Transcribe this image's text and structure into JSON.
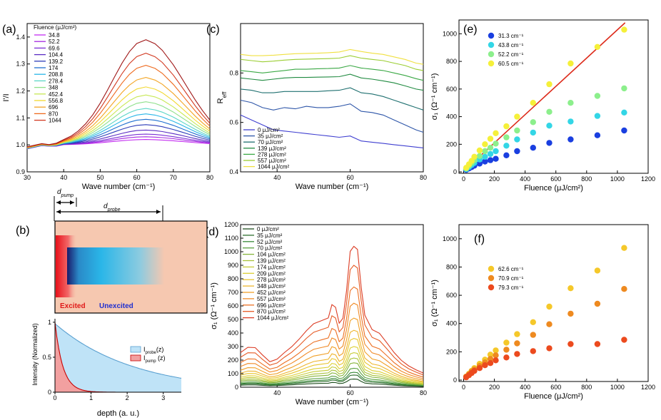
{
  "panel_labels": {
    "a": "(a)",
    "b": "(b)",
    "c": "(c)",
    "d": "(d)",
    "e": "(e)",
    "f": "(f)"
  },
  "chart_data": [
    {
      "id": "a",
      "type": "line",
      "title": "",
      "xlabel": "Wave number (cm⁻¹)",
      "ylabel": "I'/I",
      "xlim": [
        30,
        80
      ],
      "ylim": [
        0.9,
        1.45
      ],
      "xticks": [
        30,
        40,
        50,
        60,
        70,
        80
      ],
      "yticks": [
        0.9,
        1.0,
        1.1,
        1.2,
        1.3,
        1.4
      ],
      "legend_title": "Fluence (μJ/cm²)",
      "x": [
        30,
        32,
        34,
        36,
        38,
        40,
        42,
        44,
        46,
        48,
        50,
        52,
        54,
        56,
        58,
        60,
        62.5,
        65,
        67,
        70,
        72,
        74,
        76,
        78,
        80
      ],
      "series": [
        {
          "name": "34.8",
          "peak": 1.02,
          "color": "#c32cf0"
        },
        {
          "name": "52.2",
          "peak": 1.03,
          "color": "#a428e0"
        },
        {
          "name": "69.6",
          "peak": 1.04,
          "color": "#7b2fd4"
        },
        {
          "name": "104.4",
          "peak": 1.055,
          "color": "#5a2cc4"
        },
        {
          "name": "139.2",
          "peak": 1.075,
          "color": "#2c3cb8"
        },
        {
          "name": "174",
          "peak": 1.095,
          "color": "#1f6fd0"
        },
        {
          "name": "208.8",
          "peak": 1.115,
          "color": "#29b6e8"
        },
        {
          "name": "278.4",
          "peak": 1.135,
          "color": "#5bd6c6"
        },
        {
          "name": "348",
          "peak": 1.16,
          "color": "#8fe08a"
        },
        {
          "name": "452.4",
          "peak": 1.185,
          "color": "#c8e855"
        },
        {
          "name": "556.8",
          "peak": 1.215,
          "color": "#f2d830"
        },
        {
          "name": "696",
          "peak": 1.25,
          "color": "#f3a525"
        },
        {
          "name": "870",
          "peak": 1.295,
          "color": "#ee6a1e"
        },
        {
          "name": "1044",
          "peak": 1.34,
          "color": "#d23a22"
        },
        {
          "name": "",
          "peak": 1.39,
          "color": "#a01818"
        }
      ]
    },
    {
      "id": "b",
      "type": "area",
      "title": "",
      "xlabel": "depth (a. u.)",
      "ylabel": "Intensity (Normalized)",
      "xlim": [
        0,
        3.5
      ],
      "ylim": [
        0,
        1.05
      ],
      "xticks": [
        0,
        1,
        2,
        3
      ],
      "yticks": [
        0,
        0.5,
        1
      ],
      "series": [
        {
          "name": "I_probe(z)",
          "decay_length": 2.2,
          "color": "#bfe3f7"
        },
        {
          "name": "I_pump (z)",
          "decay_length": 0.22,
          "color": "#f2a0a0"
        }
      ],
      "legend": [
        "I",
        "I"
      ],
      "legend_subs": [
        "probe",
        "pump"
      ],
      "legend_tails": [
        "(z)",
        " (z)"
      ],
      "schematic": {
        "d_pump": "d",
        "d_pump_sub": "pump",
        "d_probe": "d",
        "d_probe_sub": "probe",
        "excited": "Excited",
        "unexcited": "Unexcited"
      }
    },
    {
      "id": "c",
      "type": "line",
      "title": "",
      "xlabel": "Wave number (cm⁻¹)",
      "ylabel": "R",
      "ylabel_sub": "eff",
      "xlim": [
        30,
        80
      ],
      "ylim": [
        0.4,
        1.0
      ],
      "xticks": [
        40,
        60,
        80
      ],
      "yticks": [
        0.4,
        0.6,
        0.8
      ],
      "x": [
        30,
        33,
        36,
        39,
        42,
        45,
        48,
        51,
        54,
        57,
        60,
        63,
        66,
        69,
        72,
        75,
        78,
        80
      ],
      "series": [
        {
          "name": "0 μJ/cm²",
          "color": "#3f3fd0",
          "values": [
            0.63,
            0.61,
            0.59,
            0.57,
            0.565,
            0.56,
            0.555,
            0.55,
            0.545,
            0.54,
            0.545,
            0.525,
            0.52,
            0.515,
            0.51,
            0.505,
            0.5,
            0.497
          ]
        },
        {
          "name": "35 μJ/cm²",
          "color": "#2d55a8",
          "values": [
            0.69,
            0.68,
            0.66,
            0.65,
            0.66,
            0.655,
            0.665,
            0.66,
            0.66,
            0.665,
            0.675,
            0.645,
            0.64,
            0.63,
            0.61,
            0.59,
            0.57,
            0.56
          ]
        },
        {
          "name": "70 μJ/cm²",
          "color": "#1f7070",
          "values": [
            0.735,
            0.73,
            0.72,
            0.72,
            0.725,
            0.725,
            0.725,
            0.725,
            0.728,
            0.73,
            0.74,
            0.72,
            0.715,
            0.705,
            0.69,
            0.675,
            0.66,
            0.65
          ]
        },
        {
          "name": "139 μJ/cm²",
          "color": "#208a40",
          "values": [
            0.78,
            0.775,
            0.77,
            0.775,
            0.78,
            0.782,
            0.782,
            0.783,
            0.784,
            0.785,
            0.795,
            0.78,
            0.775,
            0.768,
            0.76,
            0.748,
            0.735,
            0.73
          ]
        },
        {
          "name": "278 μJ/cm²",
          "color": "#3aa844",
          "values": [
            0.81,
            0.805,
            0.8,
            0.805,
            0.81,
            0.815,
            0.815,
            0.817,
            0.818,
            0.82,
            0.83,
            0.82,
            0.815,
            0.81,
            0.8,
            0.79,
            0.777,
            0.77
          ]
        },
        {
          "name": "557 μJ/cm²",
          "color": "#9acd32",
          "values": [
            0.855,
            0.85,
            0.845,
            0.848,
            0.852,
            0.855,
            0.856,
            0.857,
            0.858,
            0.86,
            0.87,
            0.86,
            0.855,
            0.85,
            0.84,
            0.83,
            0.815,
            0.81
          ]
        },
        {
          "name": "1044 μJ/cm²",
          "color": "#f0e040",
          "values": [
            0.875,
            0.87,
            0.87,
            0.872,
            0.875,
            0.878,
            0.879,
            0.88,
            0.882,
            0.885,
            0.895,
            0.887,
            0.88,
            0.875,
            0.865,
            0.855,
            0.84,
            0.835
          ]
        }
      ]
    },
    {
      "id": "d",
      "type": "line",
      "title": "",
      "xlabel": "Wave number (cm⁻¹)",
      "ylabel": "σ₁ (Ω⁻¹ cm⁻¹)",
      "xlim": [
        30,
        80
      ],
      "ylim": [
        0,
        1200
      ],
      "xticks": [
        40,
        60,
        80
      ],
      "yticks": [
        0,
        100,
        200,
        300,
        400,
        500,
        600,
        700,
        800,
        900,
        1000,
        1100,
        1200
      ],
      "x": [
        30,
        32,
        34,
        36,
        38,
        40,
        42,
        44,
        46,
        48,
        50,
        52,
        54,
        55,
        56,
        57,
        58,
        59,
        60,
        61,
        62,
        63,
        64,
        66,
        68,
        70,
        72,
        74,
        76,
        78,
        80
      ],
      "series": [
        {
          "name": "0 μJ/cm²",
          "color": "#1f4f1f",
          "peak": 60
        },
        {
          "name": "35 μJ/cm²",
          "color": "#2e6e2e",
          "peak": 90
        },
        {
          "name": "52 μJ/cm²",
          "color": "#3a8a3a",
          "peak": 110
        },
        {
          "name": "70 μJ/cm²",
          "color": "#5aa040",
          "peak": 140
        },
        {
          "name": "104 μJ/cm²",
          "color": "#86b43a",
          "peak": 180
        },
        {
          "name": "139 μJ/cm²",
          "color": "#a8c23a",
          "peak": 215
        },
        {
          "name": "174 μJ/cm²",
          "color": "#c6cc38",
          "peak": 255
        },
        {
          "name": "209 μJ/cm²",
          "color": "#dcd034",
          "peak": 300
        },
        {
          "name": "278 μJ/cm²",
          "color": "#e8c630",
          "peak": 360
        },
        {
          "name": "348 μJ/cm²",
          "color": "#eeb52c",
          "peak": 420
        },
        {
          "name": "452 μJ/cm²",
          "color": "#f0a028",
          "peak": 510
        },
        {
          "name": "557 μJ/cm²",
          "color": "#f08a26",
          "peak": 620
        },
        {
          "name": "696 μJ/cm²",
          "color": "#ec7024",
          "peak": 740
        },
        {
          "name": "870 μJ/cm²",
          "color": "#e65a24",
          "peak": 900
        },
        {
          "name": "1044 μJ/cm²",
          "color": "#dc3c24",
          "peak": 1040
        }
      ]
    },
    {
      "id": "e",
      "type": "scatter",
      "title": "",
      "xlabel": "Fluence (μJ/cm²)",
      "ylabel": "σ₁ (Ω⁻¹ cm⁻¹)",
      "xlim": [
        -30,
        1200
      ],
      "ylim": [
        -10,
        1100
      ],
      "xticks": [
        0,
        200,
        400,
        600,
        800,
        1000,
        1200
      ],
      "yticks": [
        0,
        200,
        400,
        600,
        800,
        1000
      ],
      "x": [
        17,
        35,
        52,
        70,
        104,
        139,
        174,
        209,
        278,
        348,
        452,
        557,
        696,
        870,
        1044
      ],
      "series": [
        {
          "name": "31.3 cm⁻¹",
          "color": "#1a3fe0",
          "values": [
            15,
            25,
            35,
            45,
            60,
            75,
            85,
            95,
            120,
            150,
            175,
            210,
            235,
            265,
            300
          ]
        },
        {
          "name": "43.8 cm⁻¹",
          "color": "#33d6e6",
          "values": [
            20,
            35,
            50,
            65,
            90,
            110,
            130,
            150,
            190,
            235,
            285,
            335,
            365,
            405,
            430
          ]
        },
        {
          "name": "52.2 cm⁻¹",
          "color": "#8cef8c",
          "values": [
            25,
            45,
            65,
            85,
            115,
            150,
            175,
            205,
            250,
            300,
            360,
            435,
            500,
            550,
            605
          ]
        },
        {
          "name": "60.5 cm⁻¹",
          "color": "#f5f03a",
          "values": [
            30,
            55,
            80,
            110,
            155,
            200,
            240,
            280,
            330,
            400,
            500,
            635,
            785,
            905,
            1030
          ]
        }
      ],
      "fit": {
        "color": "#dd2a1a",
        "x": [
          0,
          1050
        ],
        "y": [
          5,
          1080
        ]
      }
    },
    {
      "id": "f",
      "type": "scatter",
      "title": "",
      "xlabel": "Fluence (μJ/cm²)",
      "ylabel": "σ₁ (Ω⁻¹ cm⁻¹)",
      "xlim": [
        -30,
        1200
      ],
      "ylim": [
        -10,
        1100
      ],
      "xticks": [
        0,
        200,
        400,
        600,
        800,
        1000,
        1200
      ],
      "yticks": [
        0,
        200,
        400,
        600,
        800,
        1000
      ],
      "x": [
        17,
        35,
        52,
        70,
        104,
        139,
        174,
        209,
        278,
        348,
        452,
        557,
        696,
        870,
        1044
      ],
      "series": [
        {
          "name": "62.6 cm⁻¹",
          "color": "#f5c82a",
          "values": [
            25,
            45,
            65,
            85,
            115,
            145,
            180,
            210,
            265,
            325,
            410,
            520,
            650,
            775,
            935
          ]
        },
        {
          "name": "70.9 cm⁻¹",
          "color": "#ee8a20",
          "values": [
            25,
            40,
            60,
            75,
            100,
            125,
            150,
            175,
            215,
            260,
            320,
            395,
            470,
            540,
            645
          ]
        },
        {
          "name": "79.3 cm⁻¹",
          "color": "#ec4a1e",
          "values": [
            20,
            35,
            50,
            65,
            85,
            105,
            120,
            140,
            160,
            185,
            205,
            225,
            255,
            255,
            285
          ]
        }
      ]
    }
  ]
}
